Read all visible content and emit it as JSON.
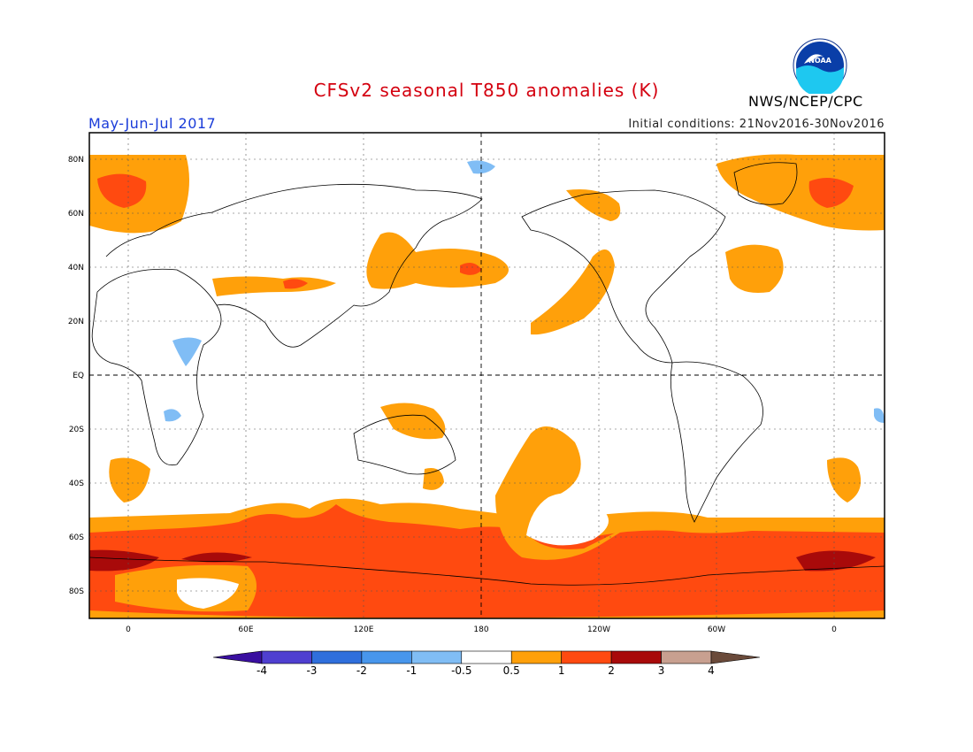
{
  "header": {
    "title": "CFSv2 seasonal T850 anomalies (K)",
    "period": "May-Jun-Jul 2017",
    "initial_conditions": "Initial conditions: 21Nov2016-30Nov2016",
    "agency": "NWS/NCEP/CPC",
    "logo_text": "NOAA"
  },
  "map": {
    "lat_labels": [
      "80N",
      "60N",
      "40N",
      "20N",
      "EQ",
      "20S",
      "40S",
      "60S",
      "80S"
    ],
    "lon_labels": [
      "0",
      "60E",
      "120E",
      "180",
      "120W",
      "60W",
      "0"
    ]
  },
  "colorbar": {
    "labels": [
      "-4",
      "-3",
      "-2",
      "-1",
      "-0.5",
      "0.5",
      "1",
      "2",
      "3",
      "4"
    ],
    "colors": [
      "#3a0fa0",
      "#4f3fd0",
      "#2f6fdc",
      "#4896ec",
      "#80bdf5",
      "#ffffff",
      "#ffa00a",
      "#ff4a10",
      "#a80a0a",
      "#c8a090",
      "#6a4a3a"
    ]
  }
}
